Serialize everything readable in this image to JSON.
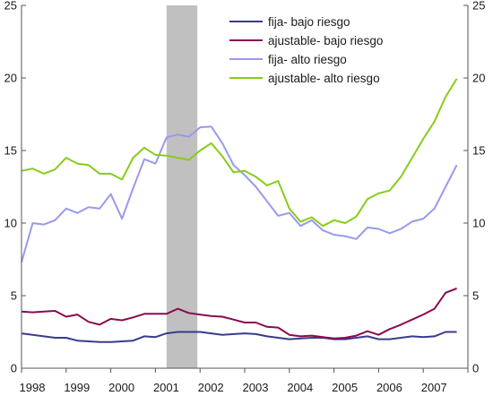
{
  "chart_data": {
    "type": "line",
    "title": "",
    "xlabel": "",
    "ylabel": "",
    "x_tick_labels": [
      "1998",
      "1999",
      "2000",
      "2001",
      "2002",
      "2003",
      "2004",
      "2005",
      "2006",
      "2007"
    ],
    "x_range": [
      1998,
      2008
    ],
    "y_ticks": [
      0,
      5,
      10,
      15,
      20,
      25
    ],
    "ylim": [
      0,
      25
    ],
    "grid": false,
    "legend_position": "top-right",
    "shaded_period": {
      "from": 2001.25,
      "to": 2001.94,
      "color": "#c0c0c0"
    },
    "series": [
      {
        "name": "fija- bajo riesgo",
        "color": "#3a3a8c",
        "x": [
          1998.0,
          1998.25,
          1998.5,
          1998.75,
          1999.0,
          1999.25,
          1999.5,
          1999.75,
          2000.0,
          2000.25,
          2000.5,
          2000.75,
          2001.0,
          2001.25,
          2001.5,
          2001.75,
          2002.0,
          2002.25,
          2002.5,
          2002.75,
          2003.0,
          2003.25,
          2003.5,
          2003.75,
          2004.0,
          2004.25,
          2004.5,
          2004.75,
          2005.0,
          2005.25,
          2005.5,
          2005.75,
          2006.0,
          2006.25,
          2006.5,
          2006.75,
          2007.0,
          2007.25,
          2007.5,
          2007.75
        ],
        "values": [
          2.4,
          2.3,
          2.2,
          2.1,
          2.1,
          1.9,
          1.85,
          1.8,
          1.8,
          1.85,
          1.9,
          2.2,
          2.15,
          2.4,
          2.5,
          2.5,
          2.5,
          2.4,
          2.3,
          2.35,
          2.4,
          2.35,
          2.2,
          2.1,
          2.0,
          2.05,
          2.1,
          2.1,
          2.0,
          2.0,
          2.1,
          2.2,
          2.0,
          2.0,
          2.1,
          2.2,
          2.15,
          2.2,
          2.5,
          2.5
        ]
      },
      {
        "name": "ajustable- bajo riesgo",
        "color": "#8b0a4e",
        "x": [
          1998.0,
          1998.25,
          1998.5,
          1998.75,
          1999.0,
          1999.25,
          1999.5,
          1999.75,
          2000.0,
          2000.25,
          2000.5,
          2000.75,
          2001.0,
          2001.25,
          2001.5,
          2001.75,
          2002.0,
          2002.25,
          2002.5,
          2002.75,
          2003.0,
          2003.25,
          2003.5,
          2003.75,
          2004.0,
          2004.25,
          2004.5,
          2004.75,
          2005.0,
          2005.25,
          2005.5,
          2005.75,
          2006.0,
          2006.25,
          2006.5,
          2006.75,
          2007.0,
          2007.25,
          2007.5,
          2007.75
        ],
        "values": [
          3.9,
          3.85,
          3.9,
          3.95,
          3.55,
          3.7,
          3.2,
          3.0,
          3.4,
          3.3,
          3.5,
          3.75,
          3.75,
          3.75,
          4.1,
          3.8,
          3.7,
          3.6,
          3.55,
          3.35,
          3.15,
          3.15,
          2.85,
          2.8,
          2.3,
          2.2,
          2.25,
          2.15,
          2.05,
          2.1,
          2.25,
          2.55,
          2.3,
          2.7,
          3.0,
          3.35,
          3.7,
          4.1,
          5.2,
          5.5
        ]
      },
      {
        "name": "fija- alto riesgo",
        "color": "#9999ee",
        "x": [
          1998.0,
          1998.25,
          1998.5,
          1998.75,
          1999.0,
          1999.25,
          1999.5,
          1999.75,
          2000.0,
          2000.25,
          2000.5,
          2000.75,
          2001.0,
          2001.25,
          2001.5,
          2001.75,
          2002.0,
          2002.25,
          2002.5,
          2002.75,
          2003.0,
          2003.25,
          2003.5,
          2003.75,
          2004.0,
          2004.25,
          2004.5,
          2004.75,
          2005.0,
          2005.25,
          2005.5,
          2005.75,
          2006.0,
          2006.25,
          2006.5,
          2006.75,
          2007.0,
          2007.25,
          2007.5,
          2007.75
        ],
        "values": [
          7.3,
          10.0,
          9.9,
          10.2,
          11.0,
          10.7,
          11.1,
          11.0,
          12.0,
          10.3,
          12.4,
          14.4,
          14.1,
          15.9,
          16.1,
          15.95,
          16.6,
          16.65,
          15.5,
          14.0,
          13.3,
          12.5,
          11.5,
          10.5,
          10.7,
          9.8,
          10.2,
          9.5,
          9.2,
          9.1,
          8.9,
          9.7,
          9.6,
          9.3,
          9.6,
          10.1,
          10.3,
          11.0,
          12.5,
          14.0
        ]
      },
      {
        "name": "ajustable- alto riesgo",
        "color": "#88cc1a",
        "x": [
          1998.0,
          1998.25,
          1998.5,
          1998.75,
          1999.0,
          1999.25,
          1999.5,
          1999.75,
          2000.0,
          2000.25,
          2000.5,
          2000.75,
          2001.0,
          2001.25,
          2001.5,
          2001.75,
          2002.0,
          2002.25,
          2002.5,
          2002.75,
          2003.0,
          2003.25,
          2003.5,
          2003.75,
          2004.0,
          2004.25,
          2004.5,
          2004.75,
          2005.0,
          2005.25,
          2005.5,
          2005.75,
          2006.0,
          2006.25,
          2006.5,
          2006.75,
          2007.0,
          2007.25,
          2007.5,
          2007.75
        ],
        "values": [
          13.6,
          13.75,
          13.4,
          13.7,
          14.5,
          14.1,
          14.0,
          13.4,
          13.4,
          13.0,
          14.5,
          15.2,
          14.7,
          14.65,
          14.5,
          14.35,
          15.0,
          15.5,
          14.6,
          13.5,
          13.6,
          13.2,
          12.6,
          12.9,
          11.0,
          10.1,
          10.4,
          9.8,
          10.2,
          10.0,
          10.45,
          11.65,
          12.05,
          12.25,
          13.2,
          14.5,
          15.8,
          17.0,
          18.7,
          19.95
        ]
      }
    ]
  }
}
